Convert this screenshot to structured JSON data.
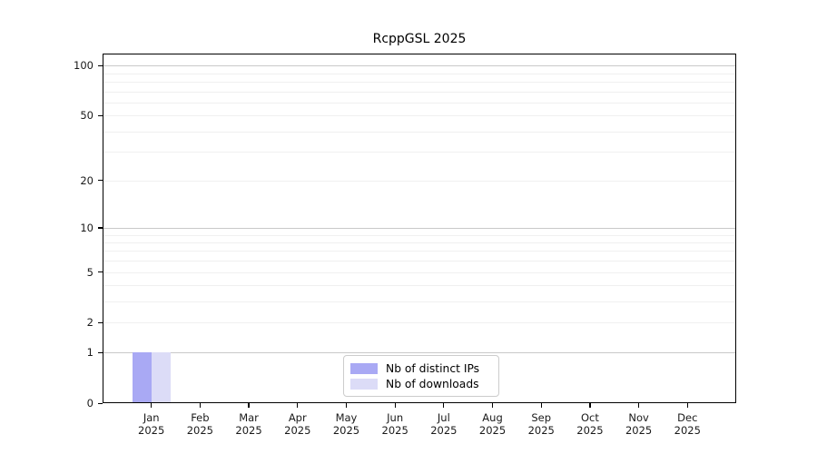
{
  "title": "RcppGSL 2025",
  "chart_data": {
    "type": "bar",
    "title": "RcppGSL 2025",
    "x_categories": [
      "Jan",
      "Feb",
      "Mar",
      "Apr",
      "May",
      "Jun",
      "Jul",
      "Aug",
      "Sep",
      "Oct",
      "Nov",
      "Dec"
    ],
    "x_year": "2025",
    "series": [
      {
        "name": "Nb of distinct IPs",
        "color": "#a9a9f4",
        "values": [
          1,
          0,
          0,
          0,
          0,
          0,
          0,
          0,
          0,
          0,
          0,
          0
        ]
      },
      {
        "name": "Nb of downloads",
        "color": "#dcdcf7",
        "values": [
          1,
          0,
          0,
          0,
          0,
          0,
          0,
          0,
          0,
          0,
          0,
          0
        ]
      }
    ],
    "y_scale": "log1p",
    "ylim": [
      0,
      118
    ],
    "y_tick_labels": [
      "0",
      "1",
      "2",
      "5",
      "10",
      "20",
      "50",
      "100"
    ],
    "y_ticks": [
      0,
      1,
      2,
      5,
      10,
      20,
      50,
      100
    ],
    "y_major_gridlines": [
      1,
      10,
      100
    ],
    "y_minor_gridlines": [
      2,
      3,
      4,
      5,
      6,
      7,
      8,
      9,
      20,
      30,
      40,
      50,
      60,
      70,
      80,
      90
    ],
    "grid": true,
    "legend_position": "bottom-center"
  },
  "colors": {
    "axis": "#000000",
    "major_grid": "#c9c9c9",
    "minor_grid": "#f0f0f0",
    "legend_border": "#cccccc",
    "background": "#ffffff"
  }
}
